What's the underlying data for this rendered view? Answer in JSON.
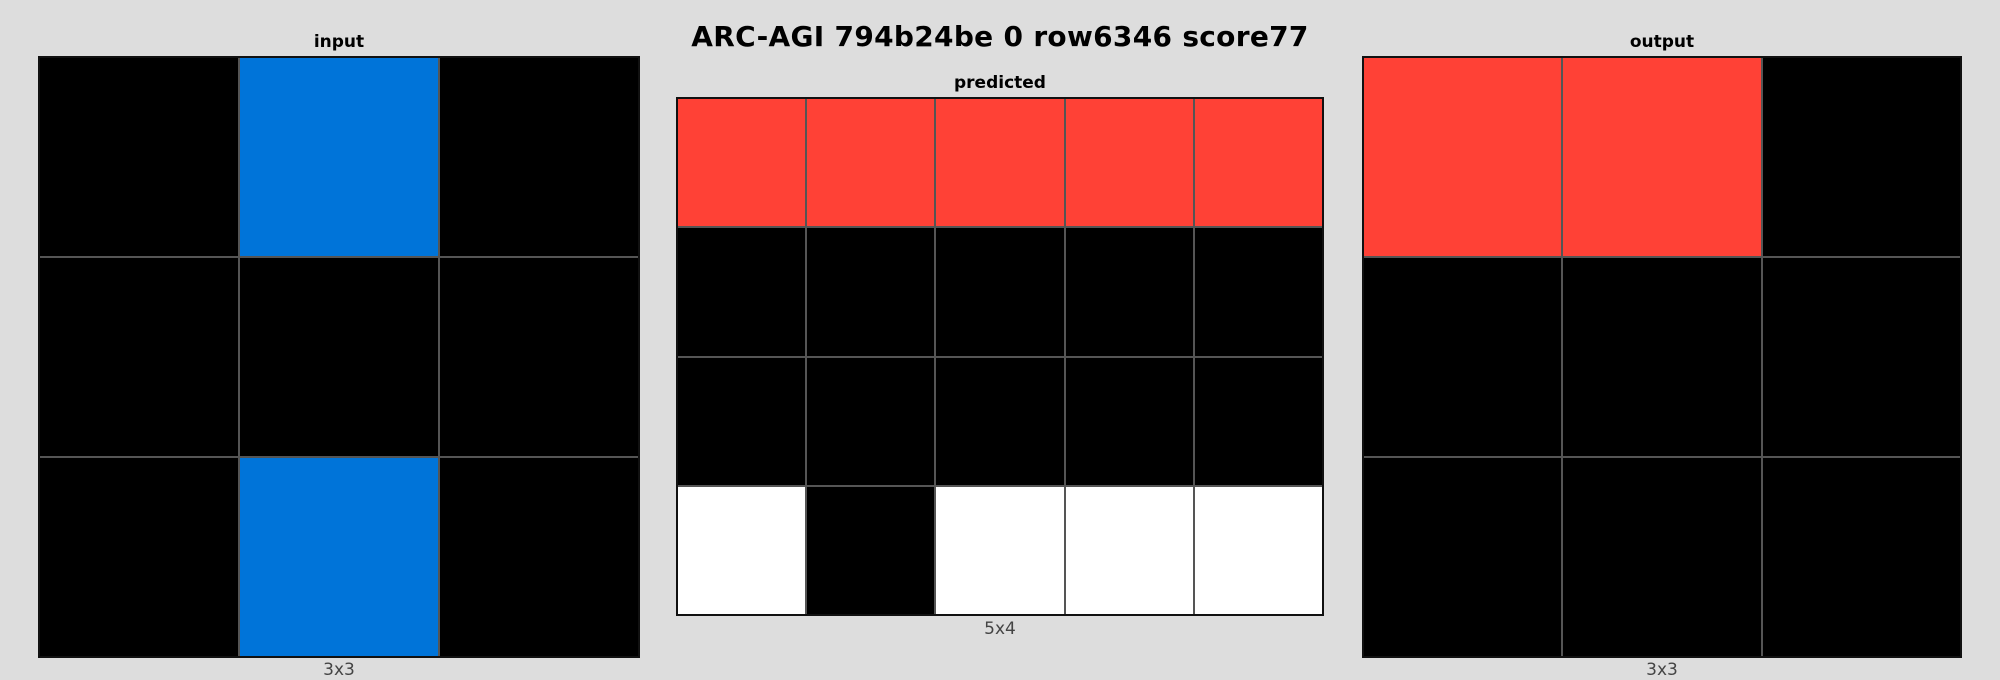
{
  "title": "ARC-AGI 794b24be 0 row6346 score77",
  "palette": {
    "0": "#000000",
    "1": "#0074d9",
    "2": "#ff4136",
    "5": "#ffffff"
  },
  "panels": [
    {
      "id": "input",
      "label": "input",
      "dims": "3x3",
      "rows": [
        [
          0,
          1,
          0
        ],
        [
          0,
          0,
          0
        ],
        [
          0,
          1,
          0
        ]
      ]
    },
    {
      "id": "predicted",
      "label": "predicted",
      "dims": "5x4",
      "rows": [
        [
          2,
          2,
          2,
          2,
          2
        ],
        [
          0,
          0,
          0,
          0,
          0
        ],
        [
          0,
          0,
          0,
          0,
          0
        ],
        [
          5,
          0,
          5,
          5,
          5
        ]
      ]
    },
    {
      "id": "output",
      "label": "output",
      "dims": "3x3",
      "rows": [
        [
          2,
          2,
          0
        ],
        [
          0,
          0,
          0
        ],
        [
          0,
          0,
          0
        ]
      ]
    }
  ]
}
